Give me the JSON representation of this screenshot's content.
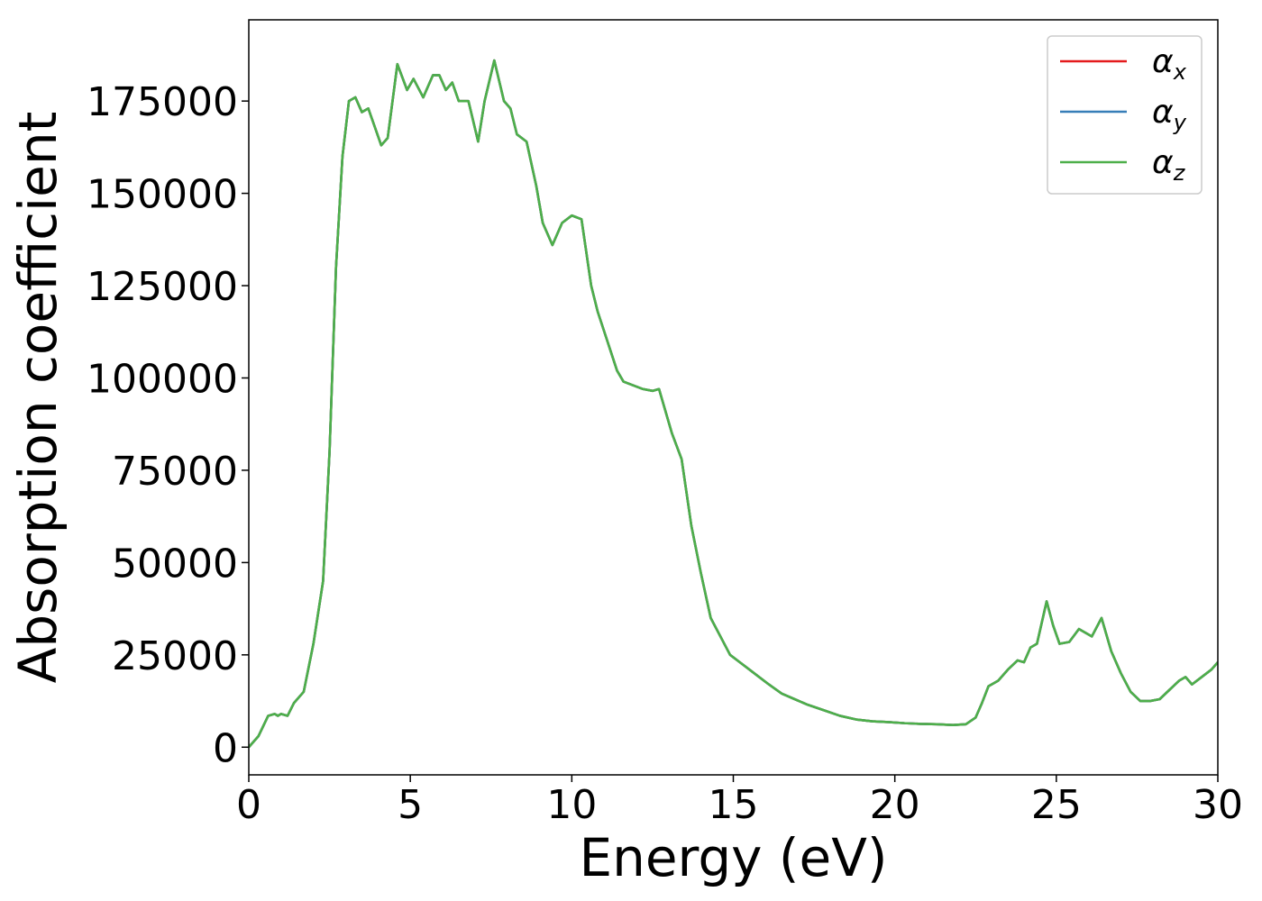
{
  "chart_data": {
    "type": "line",
    "title": "",
    "xlabel": "Energy (eV)",
    "ylabel": "Absorption coefficient",
    "xlim": [
      0,
      30
    ],
    "ylim": [
      -7500,
      197000
    ],
    "xticks": [
      0,
      5,
      10,
      15,
      20,
      25,
      30
    ],
    "xtick_labels": [
      "0",
      "5",
      "10",
      "15",
      "20",
      "25",
      "30"
    ],
    "yticks": [
      0,
      25000,
      50000,
      75000,
      100000,
      125000,
      150000,
      175000
    ],
    "ytick_labels": [
      "0",
      "25000",
      "50000",
      "75000",
      "100000",
      "125000",
      "150000",
      "175000"
    ],
    "grid": false,
    "legend_position": "top-right",
    "x": [
      0.0,
      0.3,
      0.6,
      0.8,
      0.9,
      1.0,
      1.2,
      1.4,
      1.7,
      2.0,
      2.3,
      2.5,
      2.7,
      2.9,
      3.1,
      3.3,
      3.5,
      3.7,
      3.9,
      4.1,
      4.3,
      4.6,
      4.9,
      5.1,
      5.4,
      5.7,
      5.9,
      6.1,
      6.3,
      6.5,
      6.8,
      7.1,
      7.3,
      7.6,
      7.9,
      8.1,
      8.3,
      8.6,
      8.9,
      9.1,
      9.4,
      9.7,
      10.0,
      10.3,
      10.6,
      10.8,
      11.1,
      11.4,
      11.6,
      11.9,
      12.2,
      12.5,
      12.7,
      12.9,
      13.1,
      13.4,
      13.7,
      14.0,
      14.3,
      14.6,
      14.9,
      15.2,
      15.5,
      15.8,
      16.1,
      16.5,
      16.9,
      17.3,
      17.8,
      18.3,
      18.8,
      19.3,
      19.8,
      20.3,
      20.8,
      21.3,
      21.8,
      22.2,
      22.5,
      22.7,
      22.9,
      23.2,
      23.5,
      23.8,
      24.0,
      24.2,
      24.4,
      24.7,
      24.9,
      25.1,
      25.4,
      25.7,
      25.9,
      26.1,
      26.4,
      26.7,
      27.0,
      27.3,
      27.6,
      27.9,
      28.2,
      28.5,
      28.8,
      29.0,
      29.2,
      29.5,
      29.8,
      30.0
    ],
    "series": [
      {
        "name": "α_x",
        "color": "#e41a1c",
        "values": [
          0,
          3000,
          8500,
          9000,
          8500,
          9000,
          8500,
          12000,
          15000,
          28000,
          45000,
          80000,
          130000,
          160000,
          175000,
          176000,
          172000,
          173000,
          168000,
          163000,
          165000,
          185000,
          178000,
          181000,
          176000,
          182000,
          182000,
          178000,
          180000,
          175000,
          175000,
          164000,
          175000,
          186000,
          175000,
          173000,
          166000,
          164000,
          152000,
          142000,
          136000,
          142000,
          144000,
          143000,
          125000,
          118000,
          110000,
          102000,
          99000,
          98000,
          97000,
          96500,
          97000,
          91000,
          85000,
          78000,
          60000,
          47000,
          35000,
          30000,
          25000,
          23000,
          21000,
          19000,
          17000,
          14500,
          13000,
          11500,
          10000,
          8500,
          7500,
          7000,
          6800,
          6500,
          6300,
          6200,
          6000,
          6200,
          8000,
          12000,
          16500,
          18000,
          21000,
          23500,
          23000,
          27000,
          28000,
          39500,
          33000,
          28000,
          28500,
          32000,
          31000,
          30000,
          35000,
          26000,
          20000,
          15000,
          12500,
          12500,
          13000,
          15500,
          18000,
          19000,
          17000,
          19000,
          21000,
          23000
        ]
      },
      {
        "name": "α_y",
        "color": "#377eb8",
        "values": [
          0,
          3000,
          8500,
          9000,
          8500,
          9000,
          8500,
          12000,
          15000,
          28000,
          45000,
          80000,
          130000,
          160000,
          175000,
          176000,
          172000,
          173000,
          168000,
          163000,
          165000,
          185000,
          178000,
          181000,
          176000,
          182000,
          182000,
          178000,
          180000,
          175000,
          175000,
          164000,
          175000,
          186000,
          175000,
          173000,
          166000,
          164000,
          152000,
          142000,
          136000,
          142000,
          144000,
          143000,
          125000,
          118000,
          110000,
          102000,
          99000,
          98000,
          97000,
          96500,
          97000,
          91000,
          85000,
          78000,
          60000,
          47000,
          35000,
          30000,
          25000,
          23000,
          21000,
          19000,
          17000,
          14500,
          13000,
          11500,
          10000,
          8500,
          7500,
          7000,
          6800,
          6500,
          6300,
          6200,
          6000,
          6200,
          8000,
          12000,
          16500,
          18000,
          21000,
          23500,
          23000,
          27000,
          28000,
          39500,
          33000,
          28000,
          28500,
          32000,
          31000,
          30000,
          35000,
          26000,
          20000,
          15000,
          12500,
          12500,
          13000,
          15500,
          18000,
          19000,
          17000,
          19000,
          21000,
          23000
        ]
      },
      {
        "name": "α_z",
        "color": "#4daf4a",
        "values": [
          0,
          3000,
          8500,
          9000,
          8500,
          9000,
          8500,
          12000,
          15000,
          28000,
          45000,
          80000,
          130000,
          160000,
          175000,
          176000,
          172000,
          173000,
          168000,
          163000,
          165000,
          185000,
          178000,
          181000,
          176000,
          182000,
          182000,
          178000,
          180000,
          175000,
          175000,
          164000,
          175000,
          186000,
          175000,
          173000,
          166000,
          164000,
          152000,
          142000,
          136000,
          142000,
          144000,
          143000,
          125000,
          118000,
          110000,
          102000,
          99000,
          98000,
          97000,
          96500,
          97000,
          91000,
          85000,
          78000,
          60000,
          47000,
          35000,
          30000,
          25000,
          23000,
          21000,
          19000,
          17000,
          14500,
          13000,
          11500,
          10000,
          8500,
          7500,
          7000,
          6800,
          6500,
          6300,
          6200,
          6000,
          6200,
          8000,
          12000,
          16500,
          18000,
          21000,
          23500,
          23000,
          27000,
          28000,
          39500,
          33000,
          28000,
          28500,
          32000,
          31000,
          30000,
          35000,
          26000,
          20000,
          15000,
          12500,
          12500,
          13000,
          15500,
          18000,
          19000,
          17000,
          19000,
          21000,
          23000
        ]
      }
    ],
    "legend": [
      {
        "base": "α",
        "sub": "x",
        "color": "#e41a1c"
      },
      {
        "base": "α",
        "sub": "y",
        "color": "#377eb8"
      },
      {
        "base": "α",
        "sub": "z",
        "color": "#4daf4a"
      }
    ]
  }
}
